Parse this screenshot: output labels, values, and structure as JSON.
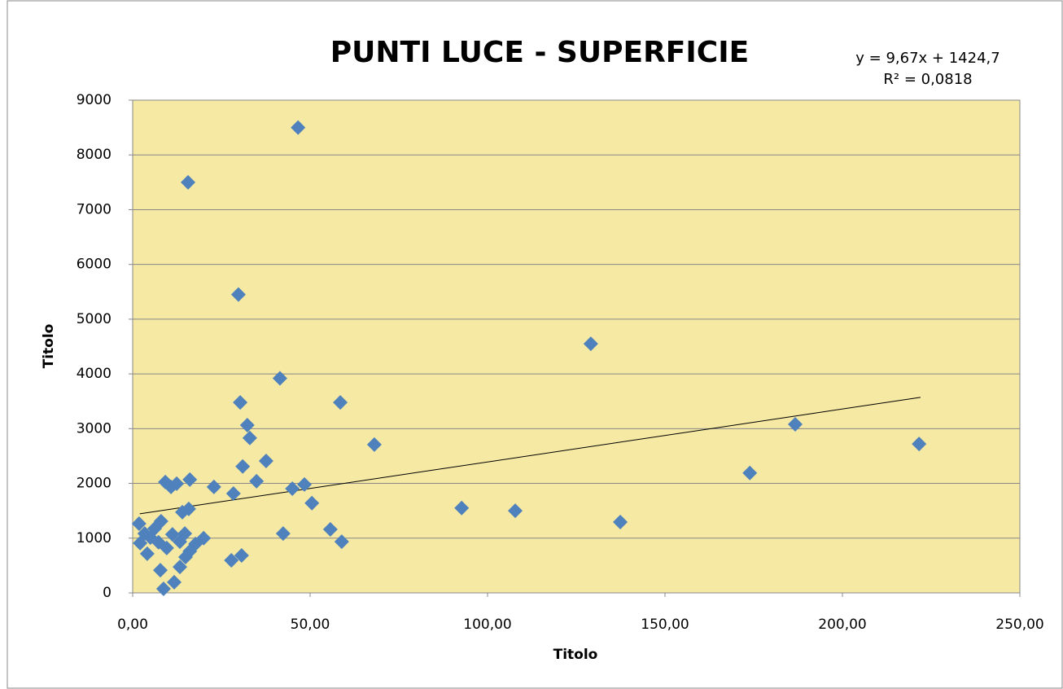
{
  "chart_data": {
    "type": "scatter",
    "title": "PUNTI LUCE - SUPERFICIE",
    "x_label": "Titolo",
    "y_label": "Titolo",
    "color": "#4f81bd",
    "background": "#f5e9a3",
    "grid": true,
    "xlim": [
      0,
      250
    ],
    "ylim": [
      0,
      9000
    ],
    "xticks": [
      {
        "value": 0,
        "label": "0,00"
      },
      {
        "value": 50,
        "label": "50,00"
      },
      {
        "value": 100,
        "label": "100,00"
      },
      {
        "value": 150,
        "label": "150,00"
      },
      {
        "value": 200,
        "label": "200,00"
      },
      {
        "value": 250,
        "label": "250,00"
      }
    ],
    "yticks": [
      0,
      1000,
      2000,
      3000,
      4000,
      5000,
      6000,
      7000,
      8000,
      9000
    ],
    "x": [
      46.6,
      15.6,
      29.8,
      129.1,
      41.5,
      30.3,
      58.5,
      32.3,
      33.0,
      186.7,
      68.1,
      221.6,
      37.6,
      31.0,
      173.9,
      34.9,
      22.9,
      16.1,
      9.2,
      12.4,
      10.8,
      48.4,
      45.0,
      28.4,
      50.5,
      92.7,
      107.8,
      15.8,
      14.0,
      137.4,
      1.8,
      8.0,
      6.2,
      55.7,
      3.4,
      5.0,
      42.4,
      14.7,
      11.2,
      7.3,
      20.0,
      2.1,
      58.9,
      9.6,
      13.3,
      17.7,
      16.1,
      4.1,
      14.9,
      30.7,
      27.8,
      7.8,
      13.3,
      11.7,
      8.7
    ],
    "values": [
      8500,
      7500,
      5450,
      4550,
      3920,
      3480,
      3480,
      3065,
      2830,
      3080,
      2710,
      2720,
      2410,
      2310,
      2190,
      2040,
      1935,
      2070,
      2025,
      1995,
      1935,
      1980,
      1905,
      1815,
      1640,
      1550,
      1500,
      1535,
      1475,
      1295,
      1265,
      1310,
      1175,
      1160,
      1085,
      1010,
      1085,
      1085,
      1070,
      925,
      1000,
      910,
      935,
      820,
      935,
      895,
      760,
      715,
      655,
      685,
      595,
      415,
      475,
      195,
      75
    ],
    "trendline": {
      "slope": 9.67,
      "intercept": 1424.7,
      "x": [
        2,
        222
      ],
      "equation": "y = 9,67x + 1424,7",
      "r2_label": "R² = 0,0818"
    }
  }
}
